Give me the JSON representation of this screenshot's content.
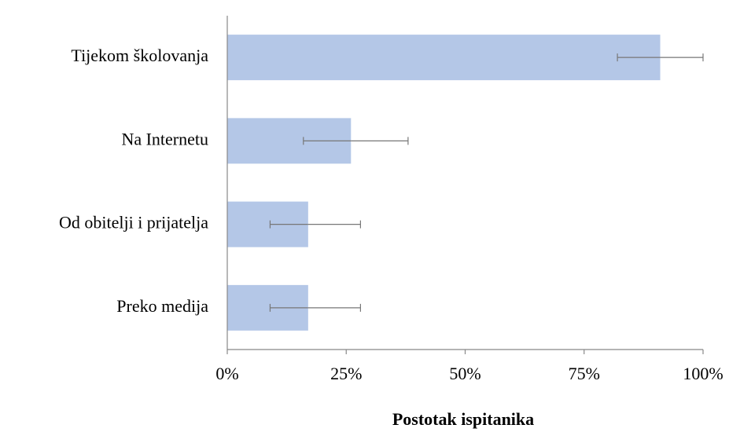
{
  "chart_data": {
    "type": "bar",
    "orientation": "horizontal",
    "x_label": "Postotak ispitanika",
    "categories": [
      "Tijekom školovanja",
      "Na Internetu",
      "Od obitelji i prijatelja",
      "Preko medija"
    ],
    "values": [
      91,
      26,
      17,
      17
    ],
    "error_minus": [
      9,
      10,
      8,
      8
    ],
    "error_plus": [
      9,
      12,
      11,
      11
    ],
    "color": "#b4c7e7",
    "xlim": [
      0,
      100
    ],
    "xticks": [
      {
        "value": 0,
        "label": "0%"
      },
      {
        "value": 25,
        "label": "25%"
      },
      {
        "value": 50,
        "label": "50%"
      },
      {
        "value": 75,
        "label": "75%"
      },
      {
        "value": 100,
        "label": "100%"
      }
    ]
  }
}
